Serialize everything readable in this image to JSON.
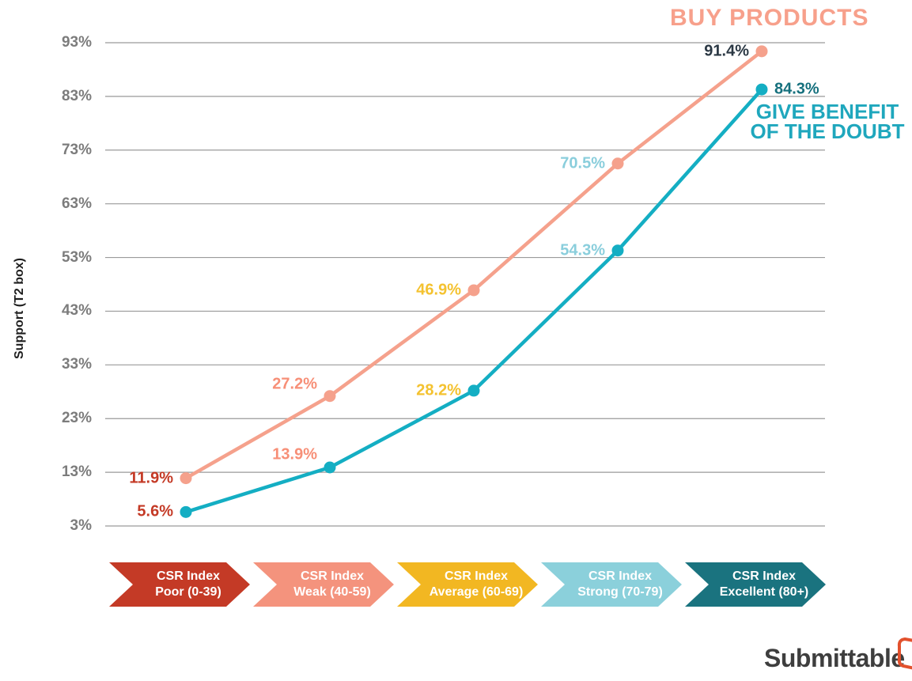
{
  "chart_data": {
    "type": "line",
    "title": "",
    "xlabel": "",
    "ylabel": "Support (T2 box)",
    "ylim": [
      3,
      93
    ],
    "grid": true,
    "grid_color": "#9a9a9a",
    "y_tick_labels": [
      "93%",
      "83%",
      "73%",
      "63%",
      "53%",
      "43%",
      "33%",
      "23%",
      "13%",
      "3%"
    ],
    "y_tick_values": [
      93,
      83,
      73,
      63,
      53,
      43,
      33,
      23,
      13,
      3
    ],
    "x_categories": [
      {
        "line1": "CSR Index",
        "line2": "Poor (0-39)",
        "color": "#c43a26"
      },
      {
        "line1": "CSR Index",
        "line2": "Weak (40-59)",
        "color": "#f4937d"
      },
      {
        "line1": "CSR Index",
        "line2": "Average (60-69)",
        "color": "#f2b722"
      },
      {
        "line1": "CSR Index",
        "line2": "Strong (70-79)",
        "color": "#8bd0db"
      },
      {
        "line1": "CSR Index",
        "line2": "Excellent (80+)",
        "color": "#1a737f"
      }
    ],
    "series": [
      {
        "name": "BUY PRODUCTS",
        "color": "#f5a18c",
        "values": [
          11.9,
          27.2,
          46.9,
          70.5,
          91.4
        ],
        "point_labels": [
          "11.9%",
          "27.2%",
          "46.9%",
          "70.5%",
          "91.4%"
        ],
        "label_colors": [
          "#c43a26",
          "#f78f77",
          "#f4c230",
          "#8acedc",
          "#2b3844"
        ],
        "label_side": [
          "left",
          "left",
          "left",
          "left",
          "left"
        ],
        "label_dy": [
          0,
          -15,
          0,
          0,
          0
        ]
      },
      {
        "name": "GIVE BENEFIT OF THE DOUBT",
        "color": "#14aec3",
        "values": [
          5.6,
          13.9,
          28.2,
          54.3,
          84.3
        ],
        "point_labels": [
          "5.6%",
          "13.9%",
          "28.2%",
          "54.3%",
          "84.3%"
        ],
        "label_colors": [
          "#c43a26",
          "#f78f77",
          "#f4c230",
          "#8acedc",
          "#15707d"
        ],
        "label_side": [
          "left",
          "left",
          "left",
          "left",
          "right"
        ],
        "label_dy": [
          0,
          -16,
          0,
          0,
          0
        ]
      }
    ],
    "legend_position": "annotations-near-line-ends"
  },
  "annotations": {
    "series1_label": "BUY PRODUCTS",
    "series2_label_line1": "GIVE BENEFIT",
    "series2_label_line2": "OF THE DOUBT"
  },
  "branding": {
    "logo_text": "Submittable",
    "logo_color": "#e2512d"
  }
}
